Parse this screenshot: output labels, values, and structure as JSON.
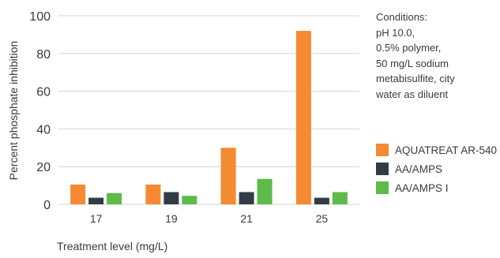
{
  "chart_data": {
    "type": "bar",
    "categories": [
      "17",
      "19",
      "21",
      "25"
    ],
    "series": [
      {
        "name": "AQUATREAT AR-540",
        "color": "#f58a32",
        "values": [
          10.5,
          10.5,
          30,
          92
        ]
      },
      {
        "name": "AA/AMPS",
        "color": "#333c46",
        "values": [
          3.5,
          6.5,
          6.5,
          3.5
        ]
      },
      {
        "name": "AA/AMPS I",
        "color": "#5dbb4a",
        "values": [
          6,
          4.5,
          13.5,
          6.5
        ]
      }
    ],
    "title": "",
    "xlabel": "Treatment level (mg/L)",
    "ylabel": "Percent phosphate inhibition",
    "ylim": [
      0,
      100
    ],
    "yticks": [
      "0",
      "20",
      "40",
      "60",
      "80",
      "100"
    ],
    "grid": true,
    "legend_placement": "right"
  },
  "conditions": {
    "lines": [
      "Conditions:",
      "pH 10.0,",
      "0.5% polymer,",
      "50 mg/L sodium",
      "metabisulfite, city",
      "water as diluent"
    ]
  }
}
